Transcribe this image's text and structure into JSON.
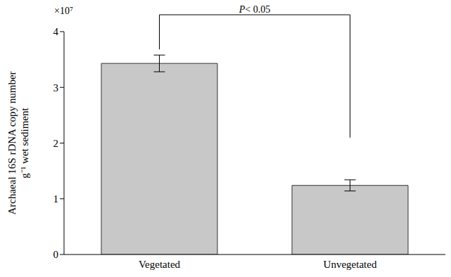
{
  "chart_data": {
    "type": "bar",
    "categories": [
      "Vegetated",
      "Unvegetated"
    ],
    "values": [
      3.43,
      1.24
    ],
    "errors": [
      0.15,
      0.1
    ],
    "color": "#c8c8c8",
    "ylabel": [
      "Archaeal 16S rDNA copy number",
      "g⁻¹ wet sediment"
    ],
    "ylim": [
      0,
      4
    ],
    "yticks": [
      0,
      1,
      2,
      3,
      4
    ],
    "annotations": [
      "×10⁷",
      "P< 0.05"
    ],
    "grid": false
  }
}
